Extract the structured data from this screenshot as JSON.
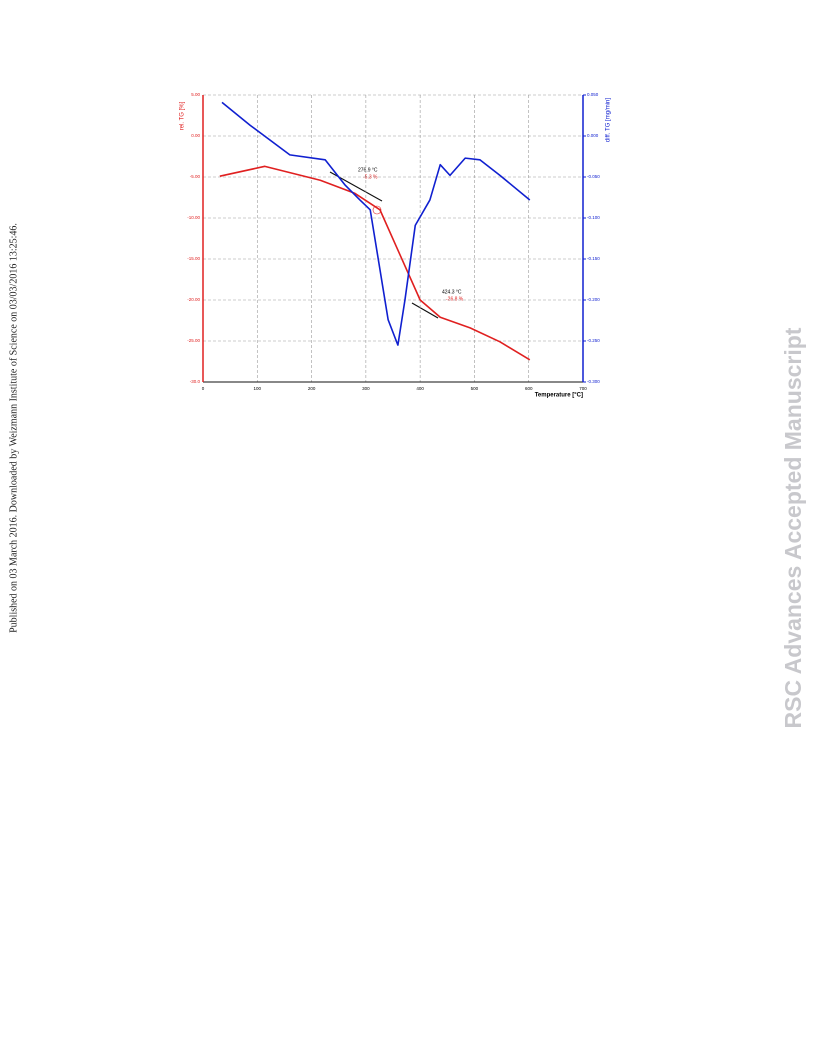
{
  "margin_note": "Published on 03 March 2016. Downloaded by Weizmann Institute of Science on 03/03/2016 13:25:46.",
  "watermark": "RSC Advances Accepted Manuscript",
  "chart_data": {
    "type": "line",
    "ylabel": "rel. TG [%]",
    "y2label": "diff. TG [mg/min]",
    "xlabel": "Temperature [°C]",
    "xlim": [
      0,
      700
    ],
    "xticks": [
      0,
      100,
      200,
      300,
      400,
      500,
      600,
      700
    ],
    "ylim": [
      -30,
      5
    ],
    "yticks": [
      {
        "value": 5,
        "label": "5.00"
      },
      {
        "value": 0,
        "label": "0.00"
      },
      {
        "value": -5,
        "label": "-5.00"
      },
      {
        "value": -10,
        "label": "-10.00"
      },
      {
        "value": -15,
        "label": "-15.00"
      },
      {
        "value": -20,
        "label": "-20.00"
      },
      {
        "value": -25,
        "label": "-25.00"
      },
      {
        "value": -30,
        "label": "-30.0"
      }
    ],
    "y2lim": [
      -0.3,
      0.05
    ],
    "y2ticks": [
      {
        "value": 0.05,
        "label": "0.050"
      },
      {
        "value": 0,
        "label": "0.000"
      },
      {
        "value": -0.05,
        "label": "-0.050"
      },
      {
        "value": -0.1,
        "label": "-0.100"
      },
      {
        "value": -0.15,
        "label": "-0.150"
      },
      {
        "value": -0.2,
        "label": "-0.200"
      },
      {
        "value": -0.25,
        "label": "-0.250"
      },
      {
        "value": -0.3,
        "label": "-0.300"
      }
    ],
    "grid": true,
    "series": [
      {
        "name": "rel. TG",
        "color": "#e02020",
        "x": [
          31,
          114,
          216,
          280,
          326,
          363,
          400,
          437,
          492,
          547,
          602
        ],
        "values": [
          -4.9,
          -3.7,
          -5.4,
          -7.0,
          -9.0,
          -14.5,
          -20.0,
          -22.1,
          -23.4,
          -25.1,
          -27.3
        ]
      },
      {
        "name": "diff. TG",
        "color": "#1020d0",
        "axis": "y2",
        "x": [
          35,
          87,
          160,
          225,
          262,
          289,
          308,
          326,
          341,
          359,
          372,
          391,
          418,
          437,
          455,
          483,
          510,
          547,
          602
        ],
        "values": [
          0.041,
          0.013,
          -0.023,
          -0.029,
          -0.06,
          -0.078,
          -0.09,
          -0.163,
          -0.224,
          -0.255,
          -0.2,
          -0.109,
          -0.078,
          -0.035,
          -0.048,
          -0.027,
          -0.029,
          -0.048,
          -0.078
        ]
      }
    ],
    "annotations": [
      "276.9 °C",
      "-5.3 %",
      "424.3 °C",
      "-26.8 %"
    ]
  }
}
